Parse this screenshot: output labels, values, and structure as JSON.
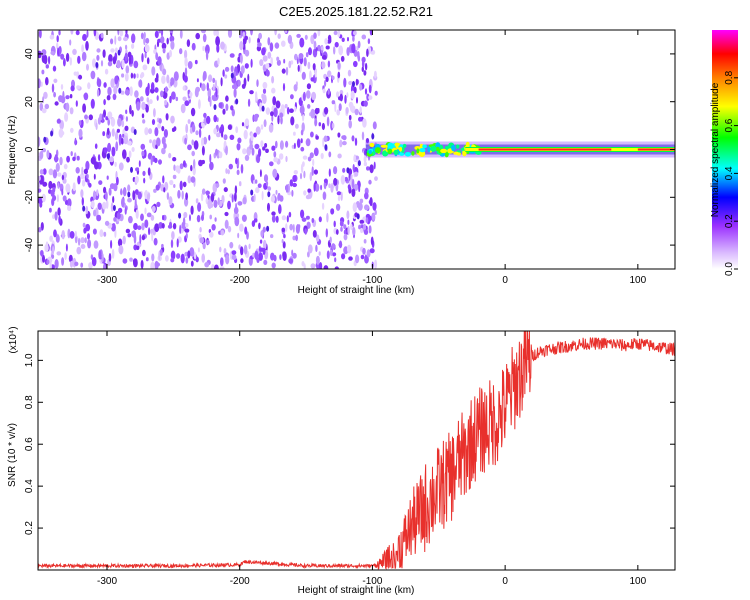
{
  "title": "C2E5.2025.181.22.52.R21",
  "chart_data": [
    {
      "type": "heatmap",
      "xlabel": "Height of straight line (km)",
      "ylabel": "Frequency (Hz)",
      "xlim": [
        -352,
        128
      ],
      "ylim": [
        -50,
        50
      ],
      "x_ticks": [
        -300,
        -200,
        -100,
        0,
        100
      ],
      "x_tick_labels": [
        "-300",
        "-200",
        "-100",
        "0",
        "100"
      ],
      "y_ticks": [
        -40,
        -20,
        0,
        20,
        40
      ],
      "y_tick_labels": [
        "-40",
        "-20",
        "0",
        "20",
        "40"
      ],
      "noise_region_x": [
        -352,
        -97
      ],
      "signal_band": {
        "x_start": -105,
        "x_end": 128,
        "center_hz": 0,
        "width_hz": 3,
        "peak_amplitude": 1.0
      },
      "colorbar": {
        "label": "Normalized spectral amplitude",
        "range": [
          0,
          1
        ],
        "ticks": [
          0.0,
          0.2,
          0.4,
          0.6,
          0.8
        ],
        "tick_labels": [
          "0.0",
          "0.2",
          "0.4",
          "0.6",
          "0.8"
        ],
        "colors": [
          "#ffffff",
          "#9b30ff",
          "#0000ff",
          "#00ffff",
          "#00ff00",
          "#ffff00",
          "#ff8000",
          "#ff0000",
          "#ff00ff"
        ]
      }
    },
    {
      "type": "line",
      "xlabel": "Height of straight line (km)",
      "ylabel": "SNR (10 * v/v)",
      "y_multiplier": "(x10⁴)",
      "xlim": [
        -352,
        128
      ],
      "ylim": [
        0,
        1.14
      ],
      "x_ticks": [
        -300,
        -200,
        -100,
        0,
        100
      ],
      "x_tick_labels": [
        "-300",
        "-200",
        "-100",
        "0",
        "100"
      ],
      "y_ticks": [
        0.2,
        0.4,
        0.6,
        0.8,
        1.0
      ],
      "y_tick_labels": [
        "0.2",
        "0.4",
        "0.6",
        "0.8",
        "1.0"
      ],
      "color": "#e8302c",
      "series": [
        {
          "x": [
            -352,
            -300,
            -250,
            -200,
            -196,
            -150,
            -110,
            -100,
            -95,
            -90,
            -85,
            -80,
            -75,
            -70,
            -65,
            -60,
            -55,
            -50,
            -45,
            -40,
            -35,
            -30,
            -25,
            -20,
            -15,
            -10,
            -5,
            0,
            5,
            10,
            15,
            20,
            25,
            30,
            40,
            50,
            60,
            70,
            80,
            90,
            100,
            110,
            120,
            128
          ],
          "y": [
            0.02,
            0.02,
            0.02,
            0.025,
            0.04,
            0.02,
            0.02,
            0.02,
            0.03,
            0.04,
            0.06,
            0.1,
            0.15,
            0.22,
            0.25,
            0.3,
            0.35,
            0.38,
            0.42,
            0.45,
            0.52,
            0.55,
            0.62,
            0.65,
            0.68,
            0.7,
            0.72,
            0.78,
            0.85,
            0.92,
            0.98,
            1.02,
            1.04,
            1.05,
            1.06,
            1.07,
            1.08,
            1.08,
            1.08,
            1.07,
            1.08,
            1.07,
            1.06,
            1.05
          ]
        }
      ]
    }
  ]
}
